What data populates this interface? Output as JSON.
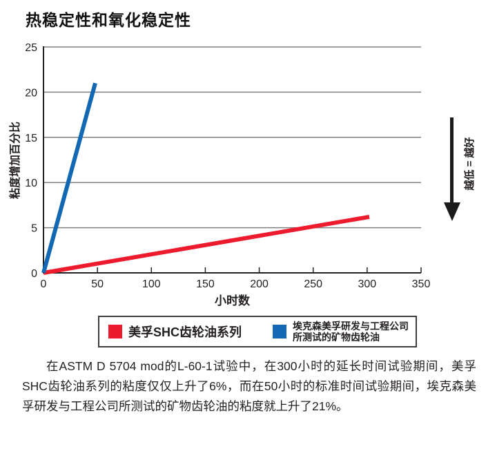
{
  "chart_data": {
    "type": "line",
    "title": "热稳定性和氧化稳定性",
    "xlabel": "小时数",
    "ylabel": "粘度增加百分比",
    "xlim": [
      0,
      350
    ],
    "ylim": [
      0,
      25
    ],
    "x_ticks": [
      0,
      50,
      100,
      150,
      200,
      250,
      300,
      350
    ],
    "y_ticks": [
      0,
      5,
      10,
      15,
      20,
      25
    ],
    "grid": "horizontal",
    "legend_position": "bottom",
    "series": [
      {
        "name": "美孚SHC齿轮油系列",
        "color": "#ED1B2D",
        "points": [
          [
            0,
            0
          ],
          [
            302,
            6.2
          ]
        ]
      },
      {
        "name": "埃克森美孚研发与工程公司所测试的矿物齿轮油",
        "color": "#1268B2",
        "points": [
          [
            0,
            0
          ],
          [
            48,
            21
          ]
        ]
      }
    ]
  },
  "annotation": {
    "arrow_label": "越低 = 越好",
    "arrow_direction": "down"
  },
  "legend": {
    "items": [
      {
        "label": "美孚SHC齿轮油系列",
        "color": "#ED1B2D"
      },
      {
        "label_line1": "埃克森美孚研发与工程公司",
        "label_line2": "所测试的矿物齿轮油",
        "color": "#1268B2"
      }
    ]
  },
  "paragraph": "在ASTM D 5704 mod的L-60-1试验中，在300小时的延长时间试验期间，美孚SHC齿轮油系列的粘度仅仅上升了6%，而在50小时的标准时间试验期间，埃克森美孚研发与工程公司所测试的矿物齿轮油的粘度就上升了21%。",
  "colors": {
    "grid": "#808080",
    "axis": "#231f20",
    "text": "#231f20"
  }
}
